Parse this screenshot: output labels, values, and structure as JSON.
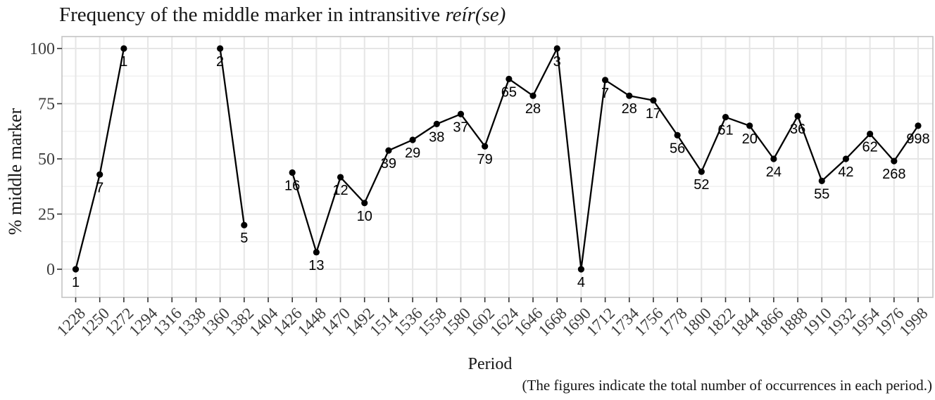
{
  "title": {
    "text_plain": "Frequency of the middle marker in intransitive ",
    "text_italic": "reír(se)"
  },
  "axes": {
    "y_label": "% middle marker",
    "x_label": "Period"
  },
  "caption": "(The figures indicate the total number of occurrences in each period.)",
  "colors": {
    "line": "#000000",
    "point": "#000000",
    "point_label": "#000000",
    "grid_major": "#e6e6e6",
    "grid_minor": "#f1f1f1",
    "panel_border": "#c4c4c4",
    "axis_tick": "#333333",
    "tick_label": "#3d3d3d",
    "background": "#ffffff"
  },
  "chart_data": {
    "type": "line",
    "title": "Frequency of the middle marker in intransitive reír(se)",
    "xlabel": "Period",
    "ylabel": "% middle marker",
    "caption": "(The figures indicate the total number of occurrences in each period.)",
    "ylim": [
      0,
      100
    ],
    "y_major_ticks": [
      0,
      25,
      50,
      75,
      100
    ],
    "y_minor_gridlines": [
      12.5,
      37.5,
      62.5,
      87.5
    ],
    "x_tick_labels": [
      1228,
      1250,
      1272,
      1294,
      1316,
      1338,
      1360,
      1382,
      1404,
      1426,
      1448,
      1470,
      1492,
      1514,
      1536,
      1558,
      1580,
      1602,
      1624,
      1646,
      1668,
      1690,
      1712,
      1734,
      1756,
      1778,
      1800,
      1822,
      1844,
      1866,
      1888,
      1910,
      1932,
      1954,
      1976,
      1998
    ],
    "legend": "none",
    "grid": {
      "vertical_major": true,
      "horizontal_major": true,
      "horizontal_minor": true
    },
    "point_labels_meaning": "total number of occurrences in each period",
    "points": [
      {
        "period": 1228,
        "pct": 0,
        "n": 1
      },
      {
        "period": 1250,
        "pct": 42.9,
        "n": 7
      },
      {
        "period": 1272,
        "pct": 100,
        "n": 1
      },
      {
        "period": 1360,
        "pct": 100,
        "n": 2
      },
      {
        "period": 1382,
        "pct": 20,
        "n": 5
      },
      {
        "period": 1426,
        "pct": 43.8,
        "n": 16
      },
      {
        "period": 1448,
        "pct": 7.7,
        "n": 13
      },
      {
        "period": 1470,
        "pct": 41.7,
        "n": 12
      },
      {
        "period": 1492,
        "pct": 30,
        "n": 10
      },
      {
        "period": 1514,
        "pct": 53.8,
        "n": 39
      },
      {
        "period": 1536,
        "pct": 58.6,
        "n": 29
      },
      {
        "period": 1558,
        "pct": 65.8,
        "n": 38
      },
      {
        "period": 1580,
        "pct": 70.3,
        "n": 37
      },
      {
        "period": 1602,
        "pct": 55.7,
        "n": 79
      },
      {
        "period": 1624,
        "pct": 86.2,
        "n": 65
      },
      {
        "period": 1646,
        "pct": 78.6,
        "n": 28
      },
      {
        "period": 1668,
        "pct": 100,
        "n": 3
      },
      {
        "period": 1690,
        "pct": 0,
        "n": 4
      },
      {
        "period": 1712,
        "pct": 85.7,
        "n": 7
      },
      {
        "period": 1734,
        "pct": 78.6,
        "n": 28
      },
      {
        "period": 1756,
        "pct": 76.5,
        "n": 17
      },
      {
        "period": 1778,
        "pct": 60.7,
        "n": 56
      },
      {
        "period": 1800,
        "pct": 44.2,
        "n": 52
      },
      {
        "period": 1822,
        "pct": 68.9,
        "n": 61
      },
      {
        "period": 1844,
        "pct": 65,
        "n": 20
      },
      {
        "period": 1866,
        "pct": 50,
        "n": 24
      },
      {
        "period": 1888,
        "pct": 69.4,
        "n": 36
      },
      {
        "period": 1910,
        "pct": 40,
        "n": 55
      },
      {
        "period": 1932,
        "pct": 50,
        "n": 42
      },
      {
        "period": 1954,
        "pct": 61.3,
        "n": 62
      },
      {
        "period": 1976,
        "pct": 49,
        "n": 268
      },
      {
        "period": 1998,
        "pct": 65,
        "n": 998
      }
    ]
  }
}
